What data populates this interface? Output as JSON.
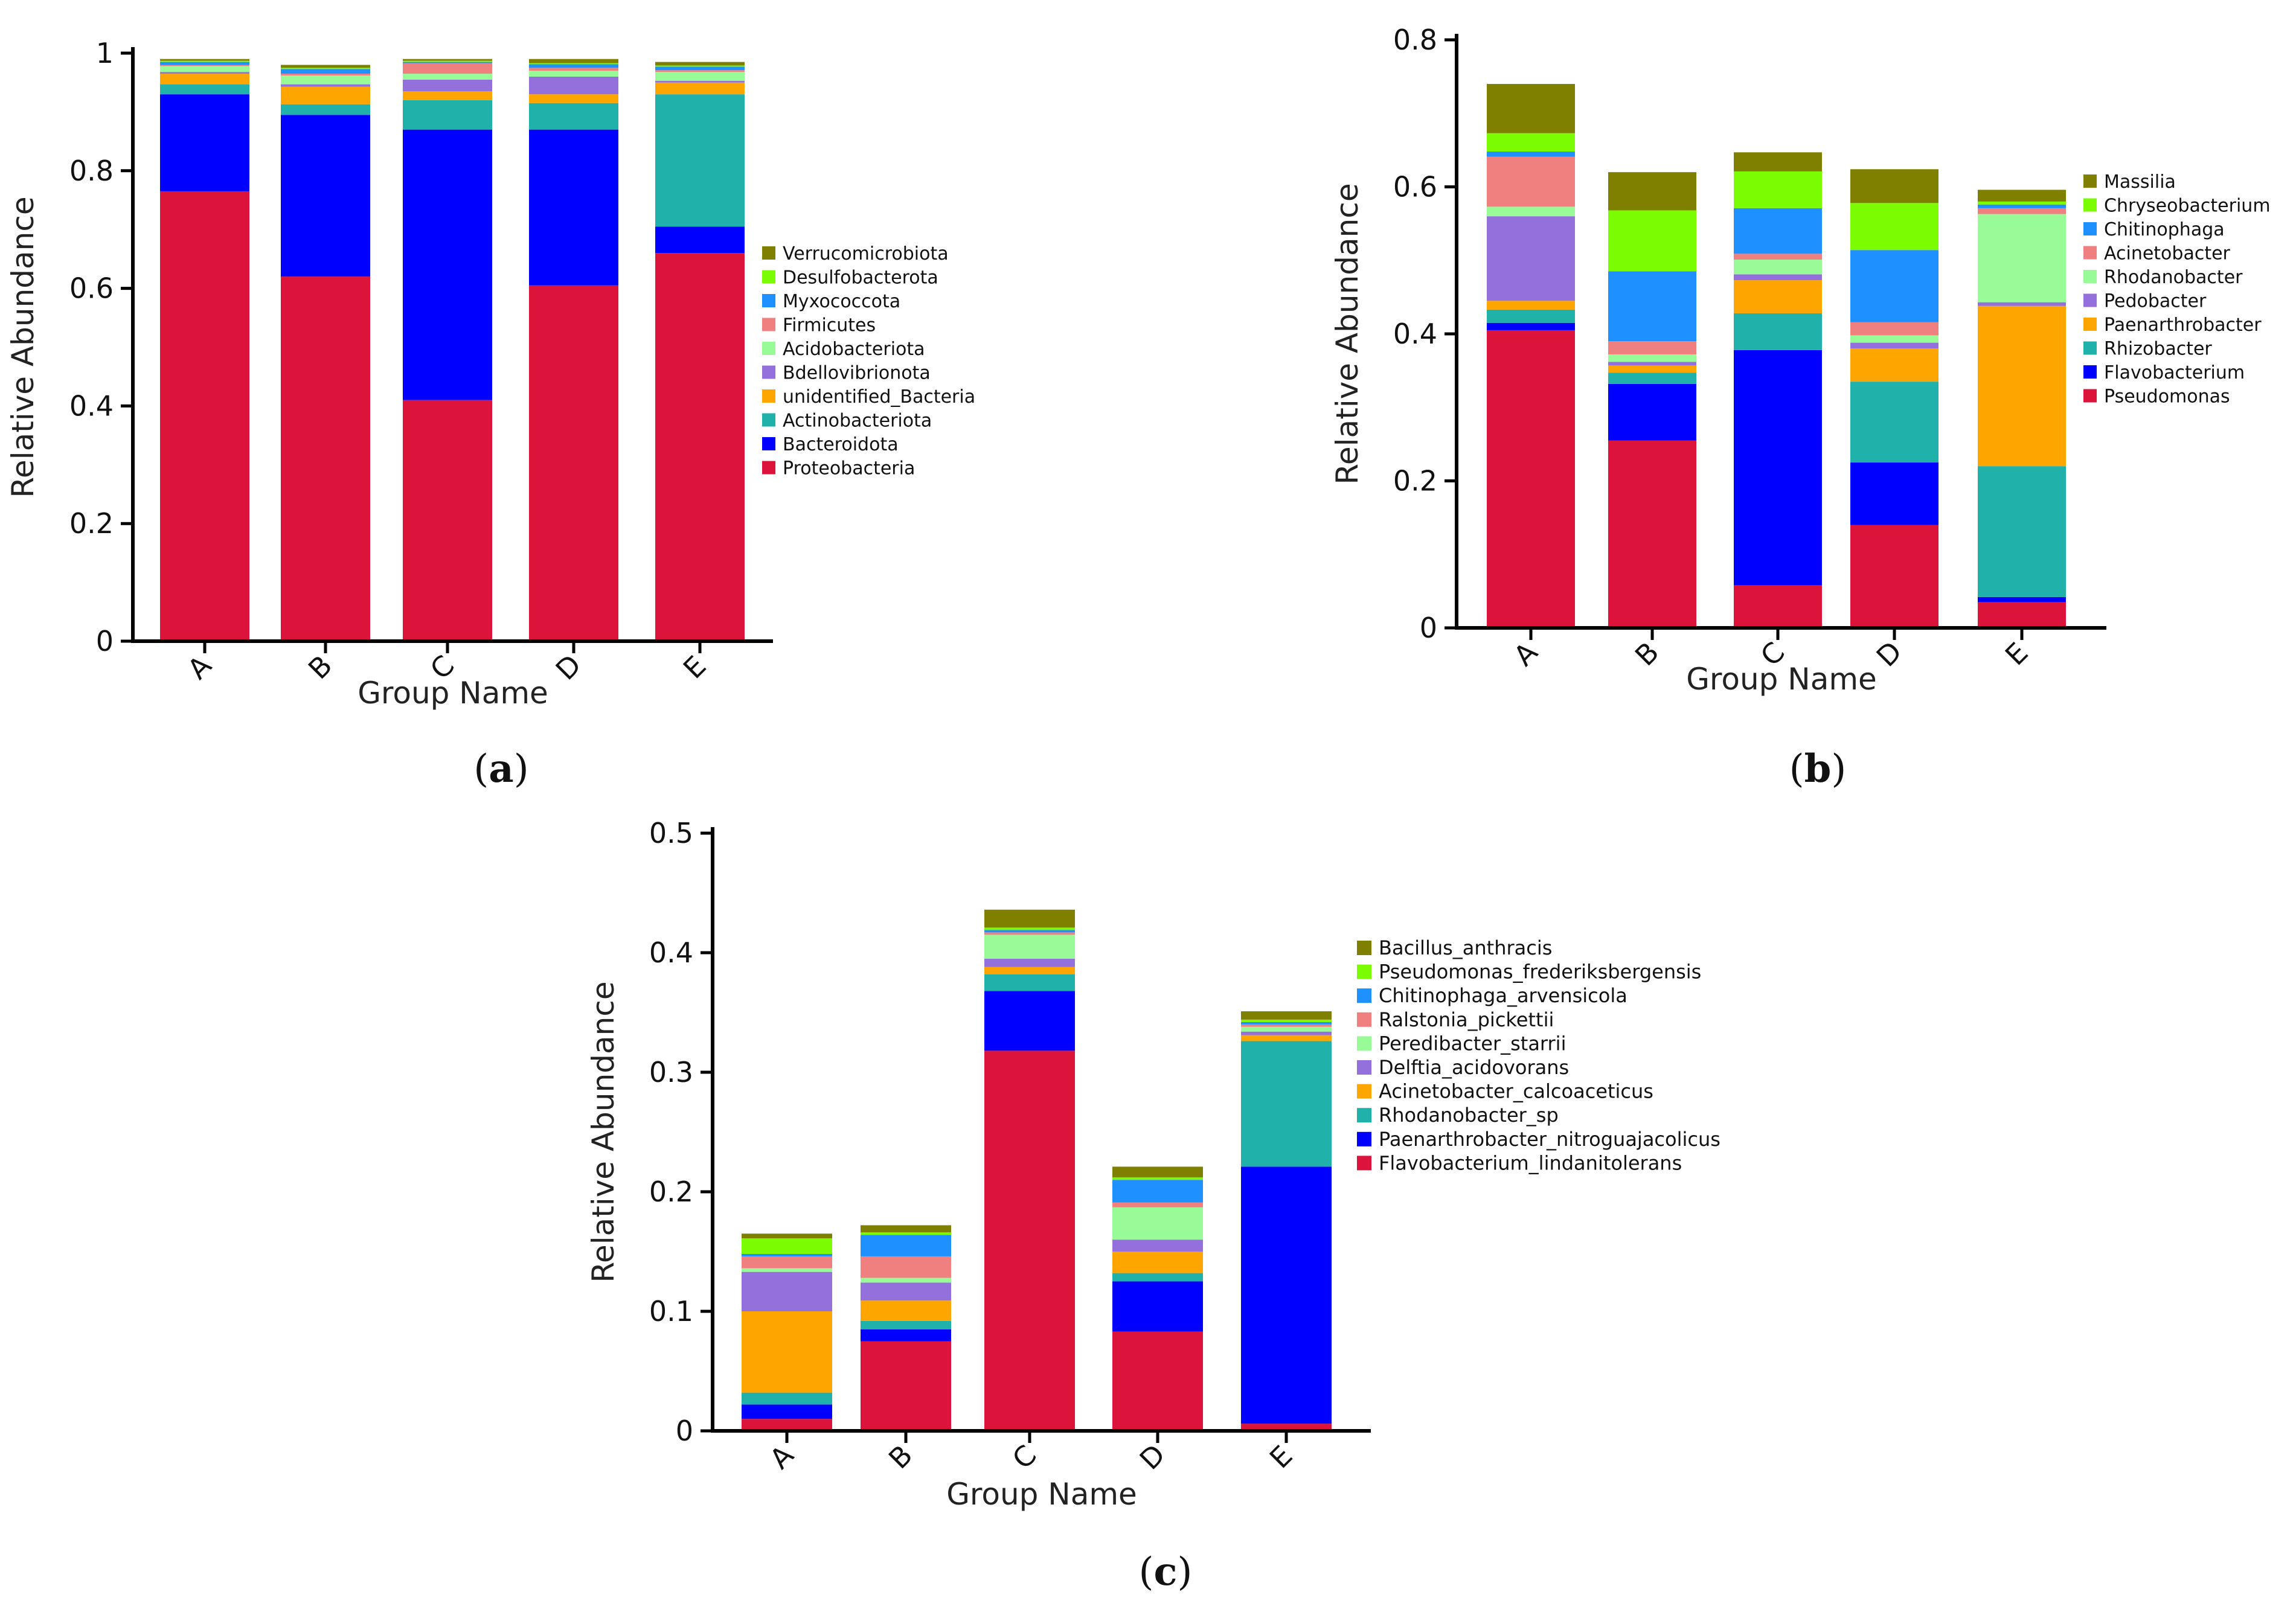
{
  "colors": [
    "#DC143C",
    "#0000FF",
    "#20B2AA",
    "#FFA500",
    "#9370DB",
    "#98FB98",
    "#F08080",
    "#1E90FF",
    "#7CFC00",
    "#808000"
  ],
  "chart_data": [
    {
      "type": "bar",
      "stacked": true,
      "panel_label": "a",
      "title": "",
      "xlabel": "Group Name",
      "ylabel": "Relative Abundance",
      "ylim": [
        0,
        1
      ],
      "yticks": [
        "0",
        "0.2",
        "0.4",
        "0.6",
        "0.8",
        "1"
      ],
      "categories": [
        "A",
        "B",
        "C",
        "D",
        "E"
      ],
      "series": [
        {
          "name": "Proteobacteria",
          "values": [
            0.765,
            0.62,
            0.41,
            0.605,
            0.66
          ]
        },
        {
          "name": "Bacteroidota",
          "values": [
            0.165,
            0.275,
            0.46,
            0.265,
            0.045
          ]
        },
        {
          "name": "Actinobacteriota",
          "values": [
            0.017,
            0.018,
            0.05,
            0.045,
            0.225
          ]
        },
        {
          "name": "unidentified_Bacteria",
          "values": [
            0.018,
            0.03,
            0.015,
            0.015,
            0.02
          ]
        },
        {
          "name": "Bdellovibrionota",
          "values": [
            0.003,
            0.004,
            0.02,
            0.03,
            0.003
          ]
        },
        {
          "name": "Acidobacteriota",
          "values": [
            0.01,
            0.015,
            0.01,
            0.01,
            0.015
          ]
        },
        {
          "name": "Firmicutes",
          "values": [
            0.002,
            0.003,
            0.018,
            0.005,
            0.003
          ]
        },
        {
          "name": "Myxococcota",
          "values": [
            0.005,
            0.008,
            0.002,
            0.006,
            0.006
          ]
        },
        {
          "name": "Desulfobacterota",
          "values": [
            0.002,
            0.002,
            0.002,
            0.002,
            0.002
          ]
        },
        {
          "name": "Verrucomicrobiota",
          "values": [
            0.003,
            0.005,
            0.003,
            0.007,
            0.006
          ]
        }
      ]
    },
    {
      "type": "bar",
      "stacked": true,
      "panel_label": "b",
      "title": "",
      "xlabel": "Group Name",
      "ylabel": "Relative Abundance",
      "ylim": [
        0,
        0.8
      ],
      "yticks": [
        "0",
        "0.2",
        "0.4",
        "0.6",
        "0.8"
      ],
      "categories": [
        "A",
        "B",
        "C",
        "D",
        "E"
      ],
      "series": [
        {
          "name": "Pseudomonas",
          "values": [
            0.405,
            0.255,
            0.058,
            0.14,
            0.035
          ]
        },
        {
          "name": "Flavobacterium",
          "values": [
            0.01,
            0.077,
            0.32,
            0.085,
            0.007
          ]
        },
        {
          "name": "Rhizobacter",
          "values": [
            0.018,
            0.015,
            0.05,
            0.11,
            0.178
          ]
        },
        {
          "name": "Paenarthrobacter",
          "values": [
            0.012,
            0.01,
            0.045,
            0.045,
            0.218
          ]
        },
        {
          "name": "Pedobacter",
          "values": [
            0.115,
            0.005,
            0.008,
            0.008,
            0.005
          ]
        },
        {
          "name": "Rhodanobacter",
          "values": [
            0.013,
            0.01,
            0.02,
            0.01,
            0.12
          ]
        },
        {
          "name": "Acinetobacter",
          "values": [
            0.068,
            0.018,
            0.008,
            0.018,
            0.008
          ]
        },
        {
          "name": "Chitinophaga",
          "values": [
            0.007,
            0.095,
            0.062,
            0.098,
            0.005
          ]
        },
        {
          "name": "Chryseobacterium",
          "values": [
            0.025,
            0.083,
            0.05,
            0.064,
            0.004
          ]
        },
        {
          "name": "Massilia",
          "values": [
            0.067,
            0.052,
            0.026,
            0.046,
            0.016
          ]
        }
      ]
    },
    {
      "type": "bar",
      "stacked": true,
      "panel_label": "c",
      "title": "",
      "xlabel": "Group Name",
      "ylabel": "Relative Abundance",
      "ylim": [
        0,
        0.5
      ],
      "yticks": [
        "0",
        "0.1",
        "0.2",
        "0.3",
        "0.4",
        "0.5"
      ],
      "categories": [
        "A",
        "B",
        "C",
        "D",
        "E"
      ],
      "series": [
        {
          "name": "Flavobacterium_lindanitolerans",
          "values": [
            0.01,
            0.075,
            0.318,
            0.083,
            0.006
          ]
        },
        {
          "name": "Paenarthrobacter_nitroguajacolicus",
          "values": [
            0.012,
            0.01,
            0.05,
            0.042,
            0.215
          ]
        },
        {
          "name": "Rhodanobacter_sp",
          "values": [
            0.01,
            0.007,
            0.014,
            0.007,
            0.105
          ]
        },
        {
          "name": "Acinetobacter_calcoaceticus",
          "values": [
            0.068,
            0.017,
            0.006,
            0.018,
            0.005
          ]
        },
        {
          "name": "Delftia_acidovorans",
          "values": [
            0.033,
            0.015,
            0.007,
            0.01,
            0.003
          ]
        },
        {
          "name": "Peredibacter_starrii",
          "values": [
            0.003,
            0.004,
            0.02,
            0.027,
            0.004
          ]
        },
        {
          "name": "Ralstonia_pickettii",
          "values": [
            0.01,
            0.018,
            0.002,
            0.004,
            0.002
          ]
        },
        {
          "name": "Chitinophaga_arvensicola",
          "values": [
            0.002,
            0.018,
            0.002,
            0.019,
            0.002
          ]
        },
        {
          "name": "Pseudomonas_frederiksbergensis",
          "values": [
            0.013,
            0.002,
            0.002,
            0.002,
            0.002
          ]
        },
        {
          "name": "Bacillus_anthracis",
          "values": [
            0.004,
            0.006,
            0.015,
            0.009,
            0.007
          ]
        }
      ]
    }
  ]
}
